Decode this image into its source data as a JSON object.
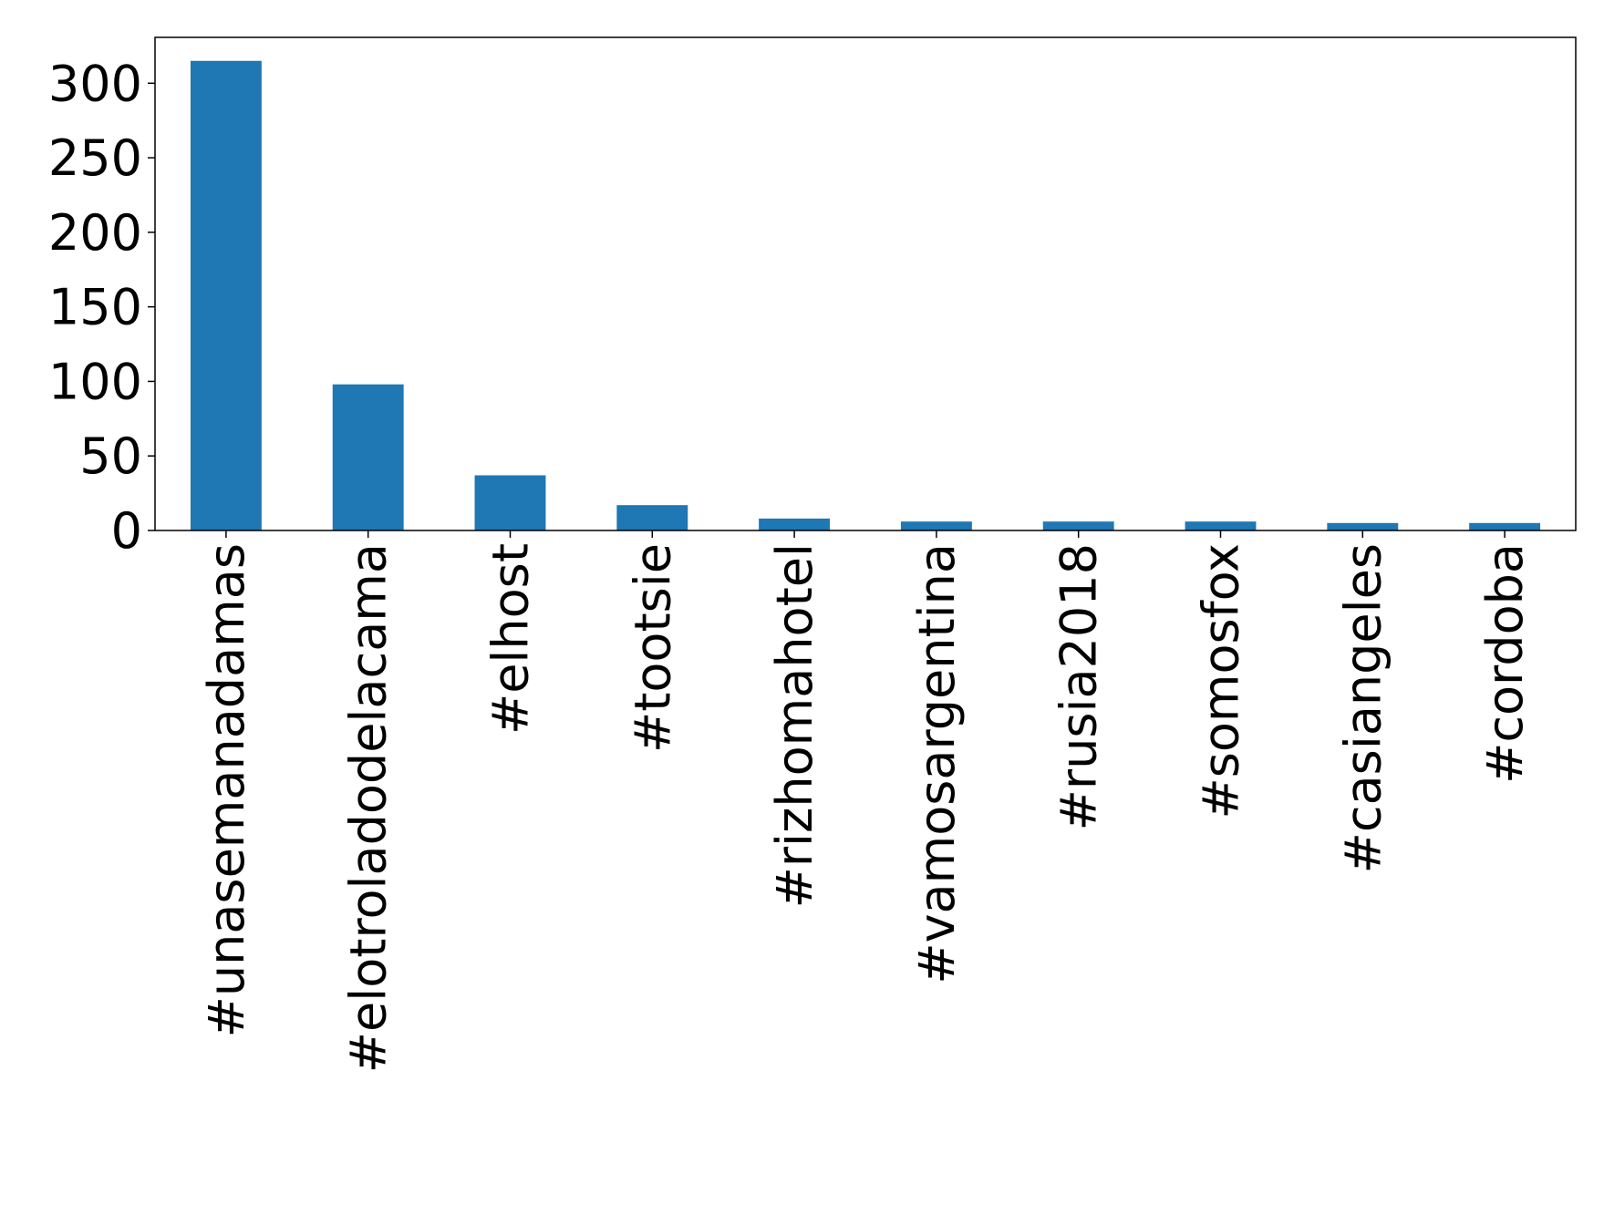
{
  "chart_data": {
    "type": "bar",
    "categories": [
      "#unasemanadamas",
      "#elotroladodelacama",
      "#elhost",
      "#tootsie",
      "#rizhomahotel",
      "#vamosargentina",
      "#rusia2018",
      "#somosfox",
      "#casiangeles",
      "#cordoba"
    ],
    "values": [
      315,
      98,
      37,
      17,
      8,
      6,
      6,
      6,
      5,
      5
    ],
    "color": "#1f77b4",
    "ylim": [
      0,
      330.75
    ],
    "yticks": [
      0,
      50,
      100,
      150,
      200,
      250,
      300
    ],
    "grid": false
  }
}
